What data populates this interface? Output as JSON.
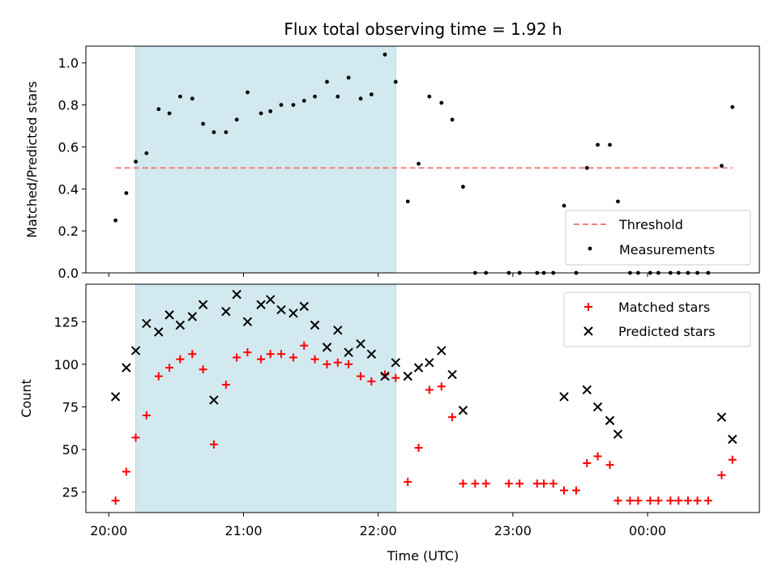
{
  "chart_data": [
    {
      "type": "scatter",
      "title": "Flux total observing time = 1.92 h",
      "xlabel": "",
      "ylabel": "Matched/Predicted stars",
      "ylim": [
        0,
        1.08
      ],
      "yticks": [
        "0.0",
        "0.2",
        "0.4",
        "0.6",
        "0.8",
        "1.0"
      ],
      "xlim_hours": [
        19.83,
        24.83
      ],
      "grid": false,
      "legend": {
        "placement": "lower-right",
        "entries": [
          "Threshold",
          "Measurements"
        ]
      },
      "highlight_span": {
        "x": [
          20.2,
          22.13
        ],
        "color": "#d2e9f0"
      },
      "threshold": {
        "name": "Threshold",
        "x": [
          20.05,
          24.63
        ],
        "y": 0.5,
        "color": "#f08080"
      },
      "series": [
        {
          "name": "Measurements",
          "color": "#000000",
          "x": [
            20.05,
            20.13,
            20.2,
            20.28,
            20.37,
            20.45,
            20.53,
            20.62,
            20.7,
            20.78,
            20.87,
            20.95,
            21.03,
            21.13,
            21.2,
            21.28,
            21.37,
            21.45,
            21.53,
            21.62,
            21.7,
            21.78,
            21.87,
            21.95,
            22.05,
            22.13,
            22.22,
            22.3,
            22.38,
            22.47,
            22.55,
            22.63,
            22.72,
            22.8,
            22.97,
            23.05,
            23.18,
            23.23,
            23.3,
            23.38,
            23.47,
            23.55,
            23.63,
            23.72,
            23.78,
            23.87,
            23.93,
            24.02,
            24.08,
            24.17,
            24.23,
            24.3,
            24.37,
            24.45,
            24.55,
            24.63
          ],
          "y": [
            0.25,
            0.38,
            0.53,
            0.57,
            0.78,
            0.76,
            0.84,
            0.83,
            0.71,
            0.67,
            0.67,
            0.73,
            0.86,
            0.76,
            0.77,
            0.8,
            0.8,
            0.82,
            0.84,
            0.91,
            0.84,
            0.93,
            0.83,
            0.85,
            1.04,
            0.91,
            0.34,
            0.52,
            0.84,
            0.81,
            0.73,
            0.41,
            0.0,
            0.0,
            0.0,
            0.0,
            0.0,
            0.0,
            0.0,
            0.32,
            0.0,
            0.5,
            0.61,
            0.61,
            0.34,
            0.0,
            0.0,
            0.0,
            0.0,
            0.0,
            0.0,
            0.0,
            0.0,
            0.0,
            0.51,
            0.79
          ]
        }
      ]
    },
    {
      "type": "scatter",
      "title": "",
      "xlabel": "Time (UTC)",
      "ylabel": "Count",
      "ylim": [
        13,
        147
      ],
      "yticks": [
        "25",
        "50",
        "75",
        "100",
        "125"
      ],
      "xticks": [
        "20:00",
        "21:00",
        "22:00",
        "23:00",
        "00:00"
      ],
      "xlim_hours": [
        19.83,
        24.83
      ],
      "grid": false,
      "legend": {
        "placement": "top-right",
        "entries": [
          "Matched stars",
          "Predicted stars"
        ]
      },
      "highlight_span": {
        "x": [
          20.2,
          22.13
        ],
        "color": "#d2e9f0"
      },
      "series": [
        {
          "name": "Matched stars",
          "marker": "plus",
          "color": "#ff0000",
          "x": [
            20.05,
            20.13,
            20.2,
            20.28,
            20.37,
            20.45,
            20.53,
            20.62,
            20.7,
            20.78,
            20.87,
            20.95,
            21.03,
            21.13,
            21.2,
            21.28,
            21.37,
            21.45,
            21.53,
            21.62,
            21.7,
            21.78,
            21.87,
            21.95,
            22.05,
            22.13,
            22.22,
            22.3,
            22.38,
            22.47,
            22.55,
            22.63,
            22.72,
            22.8,
            22.97,
            23.05,
            23.18,
            23.23,
            23.3,
            23.38,
            23.47,
            23.55,
            23.63,
            23.72,
            23.78,
            23.87,
            23.93,
            24.02,
            24.08,
            24.17,
            24.23,
            24.3,
            24.37,
            24.45,
            24.55,
            24.63
          ],
          "y": [
            20,
            37,
            57,
            70,
            93,
            98,
            103,
            106,
            97,
            53,
            88,
            104,
            107,
            103,
            106,
            106,
            104,
            111,
            103,
            100,
            101,
            100,
            93,
            90,
            94,
            92,
            31,
            51,
            85,
            87,
            69,
            30,
            30,
            30,
            30,
            30,
            30,
            30,
            30,
            26,
            26,
            42,
            46,
            41,
            20,
            20,
            20,
            20,
            20,
            20,
            20,
            20,
            20,
            20,
            35,
            44
          ]
        },
        {
          "name": "Predicted stars",
          "marker": "x",
          "color": "#000000",
          "x": [
            20.05,
            20.13,
            20.2,
            20.28,
            20.37,
            20.45,
            20.53,
            20.62,
            20.7,
            20.78,
            20.87,
            20.95,
            21.03,
            21.13,
            21.2,
            21.28,
            21.37,
            21.45,
            21.53,
            21.62,
            21.7,
            21.78,
            21.87,
            21.95,
            22.05,
            22.13,
            22.22,
            22.3,
            22.38,
            22.47,
            22.55,
            22.63,
            23.38,
            23.55,
            23.63,
            23.72,
            23.78,
            24.55,
            24.63
          ],
          "y": [
            81,
            98,
            108,
            124,
            119,
            129,
            123,
            128,
            135,
            79,
            131,
            141,
            125,
            135,
            138,
            132,
            130,
            134,
            123,
            110,
            120,
            107,
            112,
            106,
            93,
            101,
            93,
            98,
            101,
            108,
            94,
            73,
            81,
            85,
            75,
            67,
            59,
            69,
            56
          ]
        }
      ]
    }
  ]
}
